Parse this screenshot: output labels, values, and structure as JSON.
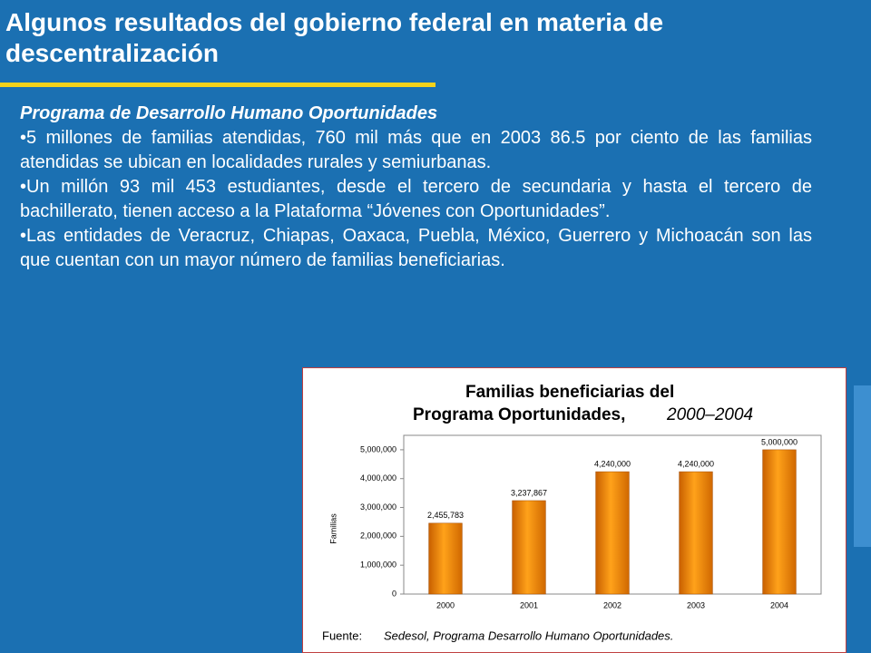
{
  "header": {
    "title": "Algunos resultados del gobierno federal en materia de descentralización"
  },
  "body": {
    "subtitle": "Programa de Desarrollo Humano Oportunidades",
    "bullets": [
      "•5 millones de familias atendidas, 760 mil más que en 2003 86.5 por ciento de las familias atendidas se ubican en localidades rurales y semiurbanas.",
      "•Un millón 93 mil 453 estudiantes, desde el tercero de secundaria y hasta el tercero de bachillerato, tienen acceso a la Plataforma “Jóvenes con Oportunidades”.",
      "•Las entidades de Veracruz, Chiapas, Oaxaca, Puebla, México, Guerrero y Michoacán son las que cuentan con un mayor número de familias beneficiarias."
    ]
  },
  "chart_data": {
    "type": "bar",
    "title": [
      "Familias beneficiarias del",
      "Programa Oportunidades,",
      "2000–2004"
    ],
    "y_label": "Familias",
    "categories": [
      "2000",
      "2001",
      "2002",
      "2003",
      "2004"
    ],
    "values": [
      2455783,
      3237867,
      4240000,
      4240000,
      5000000
    ],
    "value_labels": [
      "2,455,783",
      "3,237,867",
      "4,240,000",
      "4,240,000",
      "5,000,000"
    ],
    "color": "#f08a00",
    "ylim": [
      0,
      5500000
    ],
    "yticks": [
      0,
      {
        "value": 1000000,
        "label": "1,000,000"
      },
      {
        "value": 2000000,
        "label": "2,000,000"
      },
      {
        "value": 3000000,
        "label": "3,000,000"
      },
      {
        "value": 4000000,
        "label": "4,000,000"
      },
      {
        "value": 5000000,
        "label": "5,000,000"
      }
    ],
    "grid": false,
    "source": [
      "Fuente:",
      "Sedesol, Programa Desarrollo Humano Oportunidades."
    ]
  }
}
